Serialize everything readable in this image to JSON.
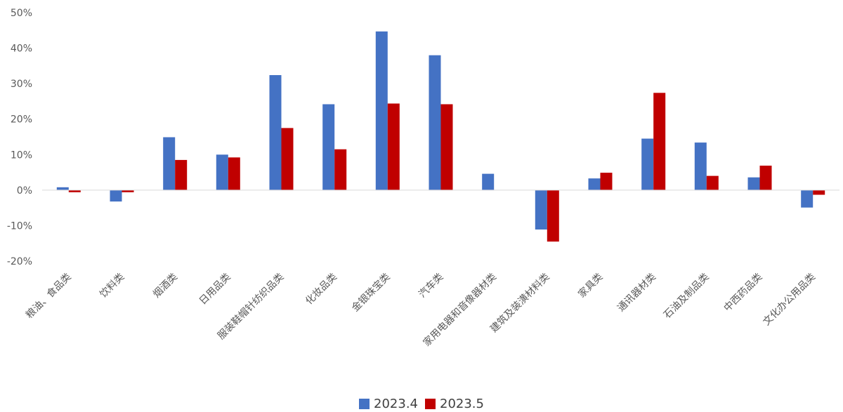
{
  "chart_data": {
    "type": "bar",
    "categories": [
      "粮油、食品类",
      "饮料类",
      "烟酒类",
      "日用品类",
      "服装鞋帽针纺织品类",
      "化妆品类",
      "金银珠宝类",
      "汽车类",
      "家用电器和音像器材类",
      "建筑及装潢材料类",
      "家具类",
      "通讯器材类",
      "石油及制品类",
      "中西药品类",
      "文化办公用品类"
    ],
    "series": [
      {
        "name": "2023.4",
        "color": "#4472C4",
        "values": [
          0.8,
          -3.2,
          14.9,
          10.0,
          32.4,
          24.2,
          44.7,
          38.0,
          4.6,
          -11.1,
          3.3,
          14.5,
          13.4,
          3.6,
          -4.9
        ]
      },
      {
        "name": "2023.5",
        "color": "#C00000",
        "values": [
          -0.6,
          -0.6,
          8.5,
          9.2,
          17.5,
          11.5,
          24.4,
          24.2,
          0,
          -14.5,
          4.9,
          27.4,
          4.0,
          6.9,
          -1.3
        ]
      }
    ],
    "yticks": [
      "50%",
      "40%",
      "30%",
      "20%",
      "10%",
      "0%",
      "-10%",
      "-20%"
    ],
    "ylim": [
      -20,
      50
    ],
    "grid": false,
    "legend": "bottom"
  }
}
